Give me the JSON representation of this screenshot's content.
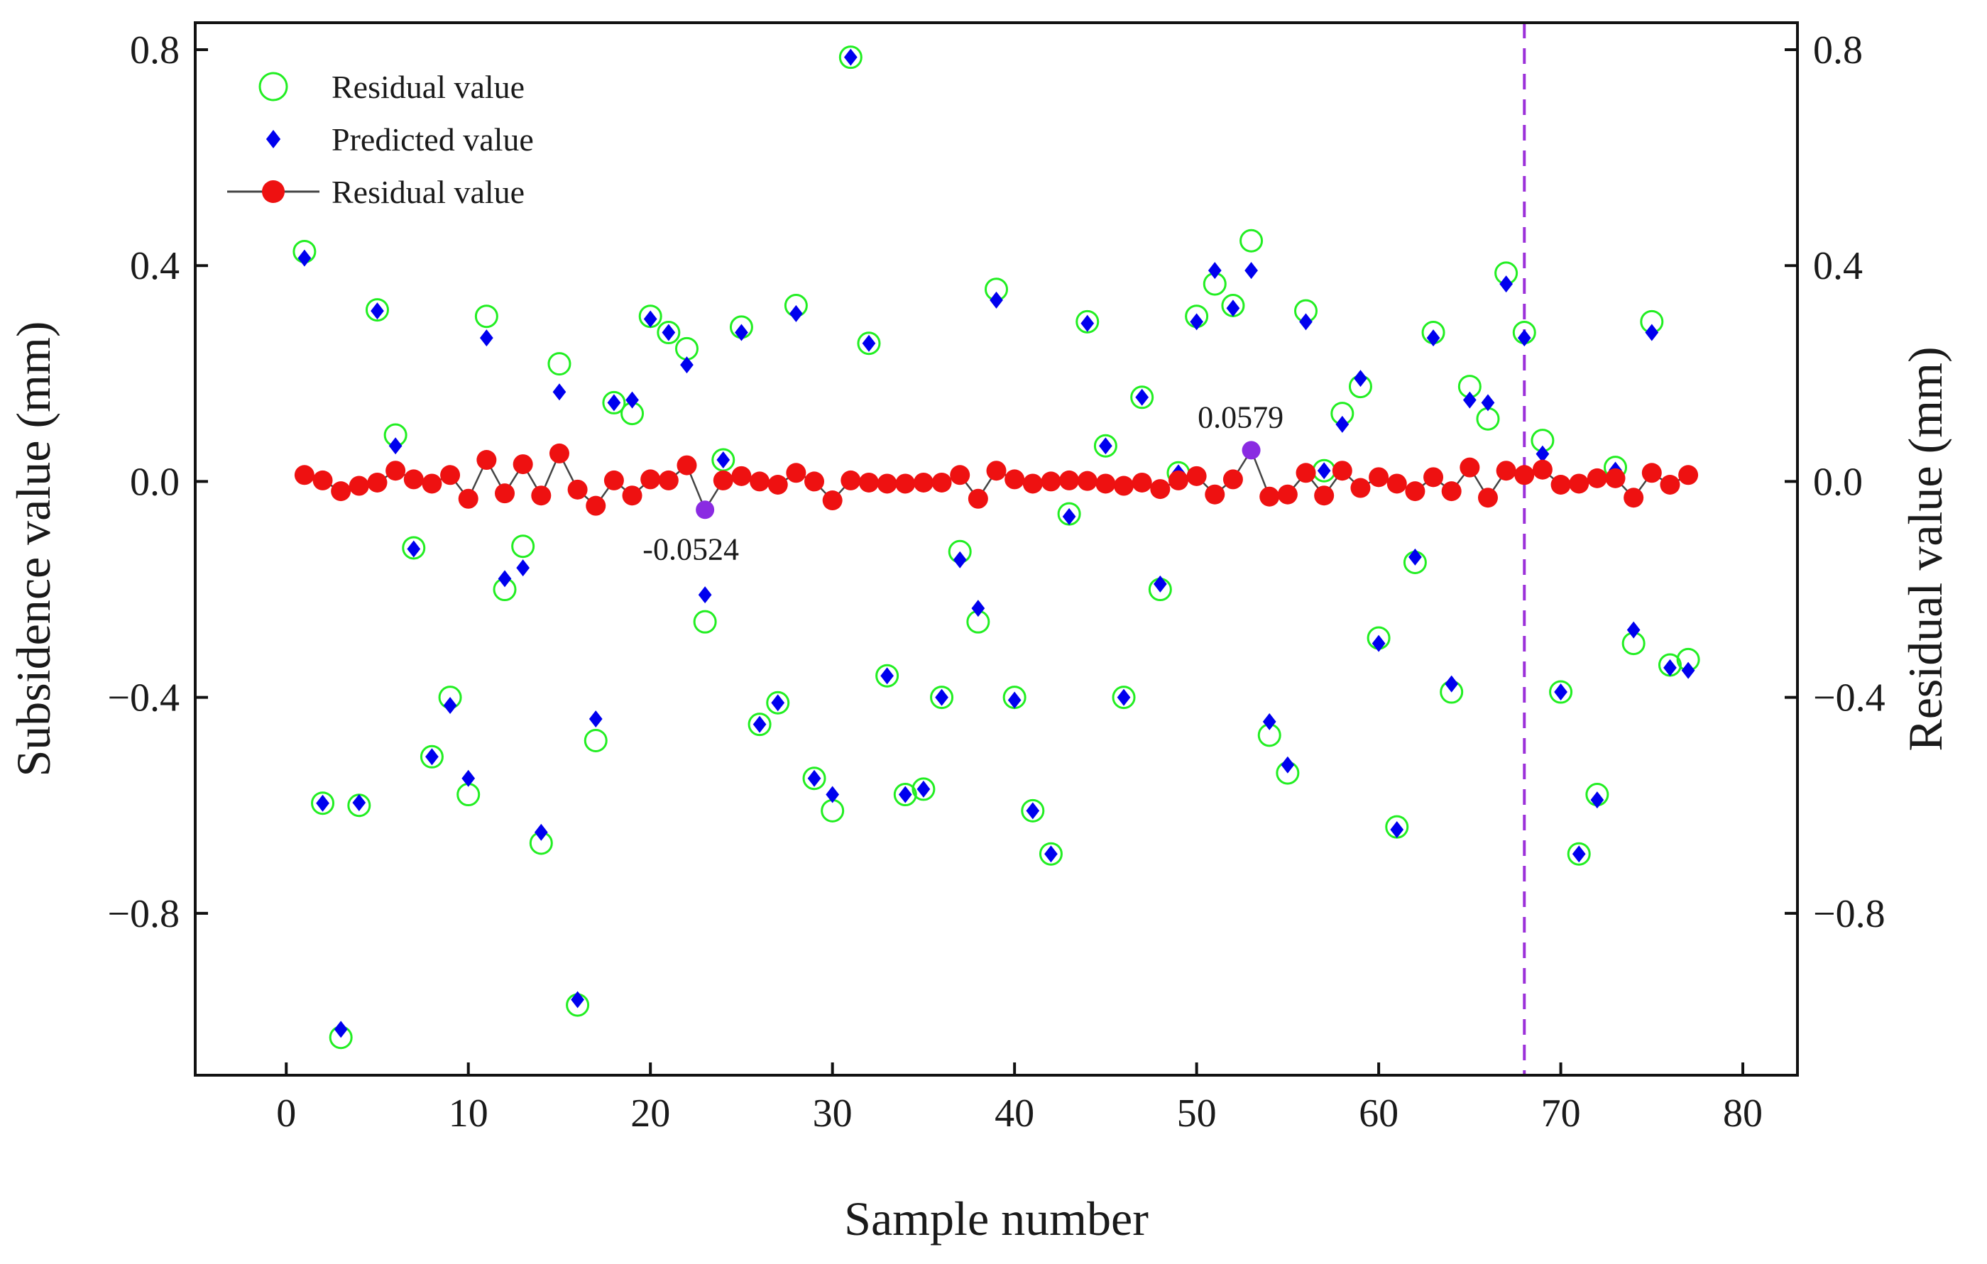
{
  "chart_data": {
    "type": "scatter",
    "xlabel": "Sample number",
    "ylabel_left": "Subsidence value (mm)",
    "ylabel_right": "Residual value (mm)",
    "xlim": [
      -5,
      83
    ],
    "ylim": [
      -1.1,
      0.85
    ],
    "xticks": [
      0,
      10,
      20,
      30,
      40,
      50,
      60,
      70,
      80
    ],
    "yticks": [
      -0.8,
      -0.4,
      0.0,
      0.4,
      0.8
    ],
    "xtick_labels": [
      "0",
      "10",
      "20",
      "30",
      "40",
      "50",
      "60",
      "70",
      "80"
    ],
    "ytick_labels_left": [
      "−0.8",
      "−0.4",
      "0.0",
      "0.4",
      "0.8"
    ],
    "ytick_labels_right": [
      "−0.8",
      "−0.4",
      "0.0",
      "0.4",
      "0.8"
    ],
    "vline_x": 68,
    "legend": {
      "position": "top-left",
      "entries": [
        "Residual value",
        "Predicted value",
        "Residual value"
      ]
    },
    "colors": {
      "actual": "#22ee22",
      "predicted": "#0000ee",
      "residual": "#ee1111",
      "highlight": "#8a2be2",
      "vline": "#9b30d9"
    },
    "series": [
      {
        "name": "Residual value",
        "marker": "open-circle",
        "x": [
          1,
          2,
          3,
          4,
          5,
          6,
          7,
          8,
          9,
          10,
          11,
          12,
          13,
          14,
          15,
          16,
          17,
          18,
          19,
          20,
          21,
          22,
          23,
          24,
          25,
          26,
          27,
          28,
          29,
          30,
          31,
          32,
          33,
          34,
          35,
          36,
          37,
          38,
          39,
          40,
          41,
          42,
          43,
          44,
          45,
          46,
          47,
          48,
          49,
          50,
          51,
          52,
          53,
          54,
          55,
          56,
          57,
          58,
          59,
          60,
          61,
          62,
          63,
          64,
          65,
          66,
          67,
          68,
          69,
          70,
          71,
          72,
          73,
          74,
          75,
          76,
          77
        ],
        "values": [
          0.426,
          -0.596,
          -1.03,
          -0.6,
          0.318,
          0.086,
          -0.123,
          -0.51,
          -0.4,
          -0.58,
          0.306,
          -0.2,
          -0.12,
          -0.67,
          0.218,
          -0.97,
          -0.48,
          0.146,
          0.126,
          0.306,
          0.276,
          0.246,
          -0.26,
          0.04,
          0.286,
          -0.45,
          -0.41,
          0.326,
          -0.55,
          -0.61,
          0.786,
          0.256,
          -0.36,
          -0.58,
          -0.57,
          -0.4,
          -0.13,
          -0.26,
          0.356,
          -0.4,
          -0.61,
          -0.69,
          -0.06,
          0.296,
          0.066,
          -0.4,
          0.156,
          -0.2,
          0.016,
          0.306,
          0.366,
          0.326,
          0.446,
          -0.47,
          -0.54,
          0.316,
          0.02,
          0.126,
          0.176,
          -0.29,
          -0.64,
          -0.15,
          0.276,
          -0.39,
          0.176,
          0.116,
          0.386,
          0.276,
          0.076,
          -0.39,
          -0.69,
          -0.58,
          0.026,
          -0.3,
          0.296,
          -0.34,
          -0.33
        ]
      },
      {
        "name": "Predicted value",
        "marker": "diamond",
        "x": [
          1,
          2,
          3,
          4,
          5,
          6,
          7,
          8,
          9,
          10,
          11,
          12,
          13,
          14,
          15,
          16,
          17,
          18,
          19,
          20,
          21,
          22,
          23,
          24,
          25,
          26,
          27,
          28,
          29,
          30,
          31,
          32,
          33,
          34,
          35,
          36,
          37,
          38,
          39,
          40,
          41,
          42,
          43,
          44,
          45,
          46,
          47,
          48,
          49,
          50,
          51,
          52,
          53,
          54,
          55,
          56,
          57,
          58,
          59,
          60,
          61,
          62,
          63,
          64,
          65,
          66,
          67,
          68,
          69,
          70,
          71,
          72,
          73,
          74,
          75,
          76,
          77
        ],
        "values": [
          0.414,
          -0.596,
          -1.015,
          -0.595,
          0.316,
          0.066,
          -0.125,
          -0.51,
          -0.415,
          -0.55,
          0.266,
          -0.18,
          -0.16,
          -0.65,
          0.166,
          -0.96,
          -0.44,
          0.146,
          0.151,
          0.301,
          0.276,
          0.216,
          -0.21,
          0.04,
          0.276,
          -0.45,
          -0.41,
          0.311,
          -0.55,
          -0.58,
          0.786,
          0.256,
          -0.36,
          -0.58,
          -0.57,
          -0.4,
          -0.145,
          -0.235,
          0.336,
          -0.405,
          -0.61,
          -0.69,
          -0.065,
          0.293,
          0.066,
          -0.4,
          0.156,
          -0.19,
          0.016,
          0.296,
          0.391,
          0.321,
          0.391,
          -0.445,
          -0.525,
          0.296,
          0.02,
          0.106,
          0.191,
          -0.3,
          -0.645,
          -0.14,
          0.266,
          -0.375,
          0.151,
          0.146,
          0.366,
          0.266,
          0.051,
          -0.39,
          -0.69,
          -0.59,
          0.021,
          -0.275,
          0.276,
          -0.345,
          -0.35
        ]
      },
      {
        "name": "Residual value",
        "marker": "line-filled-circle",
        "x": [
          1,
          2,
          3,
          4,
          5,
          6,
          7,
          8,
          9,
          10,
          11,
          12,
          13,
          14,
          15,
          16,
          17,
          18,
          19,
          20,
          21,
          22,
          23,
          24,
          25,
          26,
          27,
          28,
          29,
          30,
          31,
          32,
          33,
          34,
          35,
          36,
          37,
          38,
          39,
          40,
          41,
          42,
          43,
          44,
          45,
          46,
          47,
          48,
          49,
          50,
          51,
          52,
          53,
          54,
          55,
          56,
          57,
          58,
          59,
          60,
          61,
          62,
          63,
          64,
          65,
          66,
          67,
          68,
          69,
          70,
          71,
          72,
          73,
          74,
          75,
          76,
          77
        ],
        "values": [
          0.012,
          0.002,
          -0.018,
          -0.008,
          -0.002,
          0.02,
          0.004,
          -0.004,
          0.012,
          -0.032,
          0.04,
          -0.022,
          0.032,
          -0.026,
          0.052,
          -0.015,
          -0.045,
          0.002,
          -0.026,
          0.004,
          0.002,
          0.03,
          -0.0524,
          0.002,
          0.01,
          0.0,
          -0.006,
          0.016,
          0.0,
          -0.035,
          0.002,
          -0.002,
          -0.004,
          -0.004,
          -0.002,
          -0.002,
          0.012,
          -0.032,
          0.02,
          0.004,
          -0.004,
          0.0,
          0.002,
          0.001,
          -0.004,
          -0.008,
          -0.002,
          -0.014,
          0.002,
          0.01,
          -0.024,
          0.004,
          0.0579,
          -0.028,
          -0.024,
          0.016,
          -0.026,
          0.02,
          -0.012,
          0.008,
          -0.004,
          -0.018,
          0.008,
          -0.018,
          0.026,
          -0.03,
          0.02,
          0.012,
          0.022,
          -0.006,
          -0.004,
          0.006,
          0.006,
          -0.03,
          0.016,
          -0.006,
          0.012
        ]
      }
    ],
    "annotations": [
      {
        "x": 23,
        "value": -0.0524,
        "text": "-0.0524"
      },
      {
        "x": 53,
        "value": 0.0579,
        "text": "0.0579"
      }
    ]
  }
}
